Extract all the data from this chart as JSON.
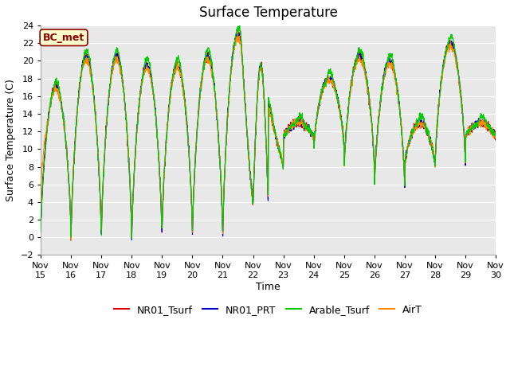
{
  "title": "Surface Temperature",
  "ylabel": "Surface Temperature (C)",
  "xlabel": "Time",
  "ylim": [
    -2,
    24
  ],
  "yticks": [
    -2,
    0,
    2,
    4,
    6,
    8,
    10,
    12,
    14,
    16,
    18,
    20,
    22,
    24
  ],
  "xtick_labels": [
    "Nov 15",
    "Nov 16",
    "Nov 17",
    "Nov 18",
    "Nov 19",
    "Nov 20",
    "Nov 21",
    "Nov 22",
    "Nov 23",
    "Nov 24",
    "Nov 25",
    "Nov 26",
    "Nov 27",
    "Nov 28",
    "Nov 29",
    "Nov 30"
  ],
  "legend_entries": [
    "NR01_Tsurf",
    "NR01_PRT",
    "Arable_Tsurf",
    "AirT"
  ],
  "line_colors": [
    "#dd0000",
    "#0000cc",
    "#00cc00",
    "#ff8800"
  ],
  "annotation_text": "BC_met",
  "annotation_bg": "#ffffcc",
  "annotation_border": "#8b0000",
  "title_fontsize": 12,
  "axis_label_fontsize": 9,
  "tick_fontsize": 8,
  "legend_fontsize": 9,
  "figsize": [
    6.4,
    4.8
  ],
  "dpi": 100
}
